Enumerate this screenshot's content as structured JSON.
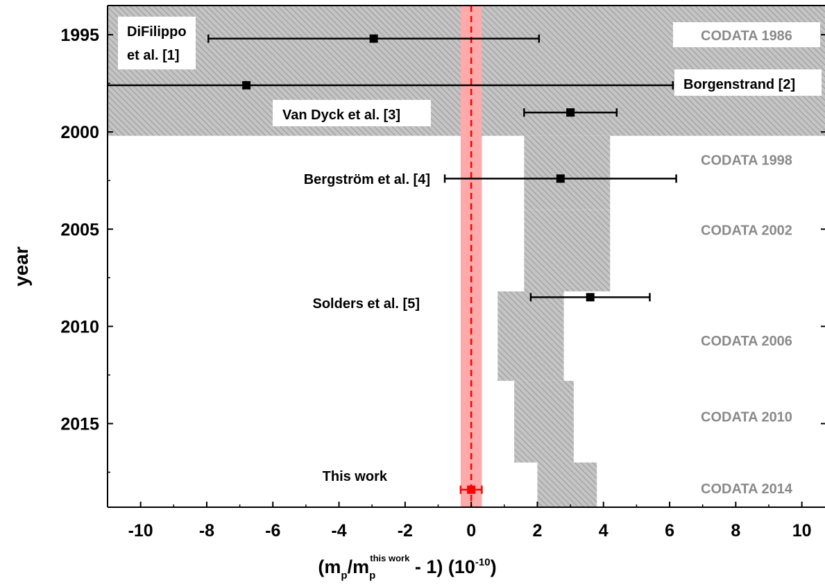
{
  "chart_data": {
    "type": "scatter",
    "orientation": "horizontal-errorbars",
    "xlabel": {
      "main": "(m",
      "sub1": "p",
      "mid": "/m",
      "sub2": "p",
      "sup": "this work",
      "tail": " - 1) (10",
      "exp": "-10",
      "end": ")"
    },
    "ylabel": "year",
    "xlim": [
      -11,
      10.7
    ],
    "ylim": [
      1993.5,
      2019.3
    ],
    "x_ticks": [
      "-10",
      "-8",
      "-6",
      "-4",
      "-2",
      "0",
      "2",
      "4",
      "6",
      "8",
      "10"
    ],
    "y_ticks": [
      "1995",
      "2000",
      "2005",
      "2010",
      "2015"
    ],
    "bands": [
      {
        "label": "CODATA 1986",
        "year_start": 1993.5,
        "year_end": 2000.2,
        "x_min": -11,
        "x_max": 10.7
      },
      {
        "label": "CODATA 1998",
        "year_start": 2000.2,
        "year_end": 2004.0,
        "x_min": 1.6,
        "x_max": 4.2
      },
      {
        "label": "CODATA 2002",
        "year_start": 2004.0,
        "year_end": 2008.2,
        "x_min": 1.6,
        "x_max": 4.2
      },
      {
        "label": "CODATA 2006",
        "year_start": 2008.2,
        "year_end": 2012.8,
        "x_min": 0.8,
        "x_max": 2.8
      },
      {
        "label": "CODATA 2010",
        "year_start": 2012.8,
        "year_end": 2017.0,
        "x_min": 1.3,
        "x_max": 3.1
      },
      {
        "label": "CODATA 2014",
        "year_start": 2017.0,
        "year_end": 2019.3,
        "x_min": 2.0,
        "x_max": 3.8
      }
    ],
    "codata_label_years": [
      1995.0,
      2001.4,
      2005.0,
      2010.7,
      2014.6,
      2018.3
    ],
    "series": [
      {
        "label": "DiFilippo",
        "label2": "et al. [1]",
        "year": 1995.2,
        "x": -2.95,
        "err_low": 5.0,
        "err_high": 5.0
      },
      {
        "label": "Borgenstrand [2]",
        "year": 1997.6,
        "x": -6.8,
        "err_low": 4.2,
        "err_high": 12.9
      },
      {
        "label": "Van Dyck et al. [3]",
        "year": 1999.0,
        "x": 3.0,
        "err_low": 1.4,
        "err_high": 1.4
      },
      {
        "label": "Bergström et al. [4]",
        "year": 2002.4,
        "x": 2.7,
        "err_low": 3.5,
        "err_high": 3.5
      },
      {
        "label": "Solders et al. [5]",
        "year": 2008.5,
        "x": 3.6,
        "err_low": 1.8,
        "err_high": 1.8
      },
      {
        "label": "This work",
        "year": 2018.4,
        "x": 0.0,
        "err_low": 0.32,
        "err_high": 0.32
      }
    ],
    "this_work_band": {
      "x_min": -0.32,
      "x_max": 0.32,
      "center": 0.0
    },
    "colors": {
      "band_fill": "#bdbdbd",
      "hatch": "#8c8c8c",
      "codata_text": "#8a8a8a",
      "this_work": "#ff0000",
      "this_work_band": "#ffaaaa",
      "marker": "#000000"
    }
  }
}
